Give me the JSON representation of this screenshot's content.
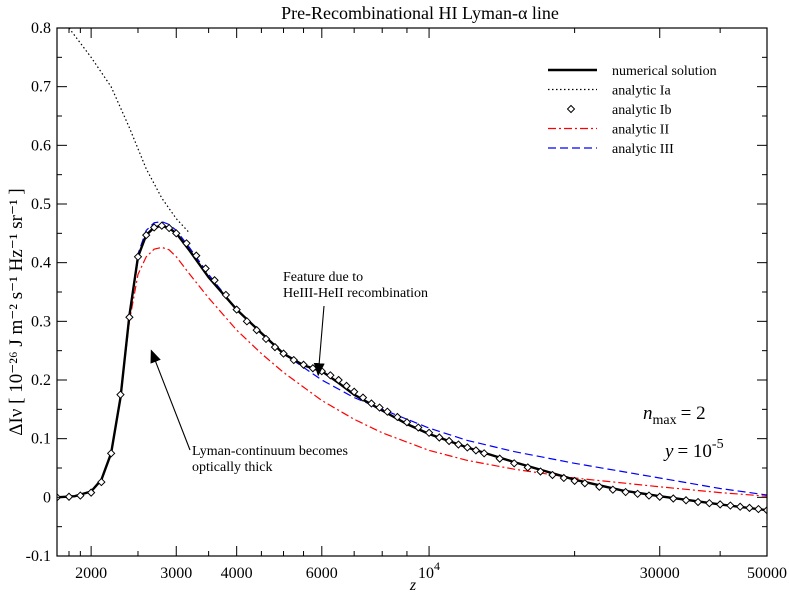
{
  "chart_data": {
    "type": "line",
    "title": "Pre-Recombinational HI Lyman-α line",
    "xlabel": "z",
    "ylabel": "ΔIν [ 10⁻²⁶ J m⁻² s⁻¹ Hz⁻¹ sr⁻¹ ]",
    "xscale": "log",
    "xlim": [
      1700,
      50000
    ],
    "ylim": [
      -0.1,
      0.8
    ],
    "x_ticks": [
      {
        "value": 2000,
        "label": "2000"
      },
      {
        "value": 3000,
        "label": "3000"
      },
      {
        "value": 4000,
        "label": "4000"
      },
      {
        "value": 6000,
        "label": "6000"
      },
      {
        "value": 10000,
        "label": "10",
        "sup": "4"
      },
      {
        "value": 30000,
        "label": "30000"
      },
      {
        "value": 50000,
        "label": "50000"
      }
    ],
    "y_ticks": [
      {
        "value": -0.1,
        "label": "-0.1"
      },
      {
        "value": 0,
        "label": "0"
      },
      {
        "value": 0.1,
        "label": "0.1"
      },
      {
        "value": 0.2,
        "label": "0.2"
      },
      {
        "value": 0.3,
        "label": "0.3"
      },
      {
        "value": 0.4,
        "label": "0.4"
      },
      {
        "value": 0.5,
        "label": "0.5"
      },
      {
        "value": 0.6,
        "label": "0.6"
      },
      {
        "value": 0.7,
        "label": "0.7"
      },
      {
        "value": 0.8,
        "label": "0.8"
      }
    ],
    "legend": {
      "position": "top-right"
    },
    "series": [
      {
        "name": "numerical solution",
        "color": "#000000",
        "style": "solid",
        "x": [
          1700,
          1850,
          2000,
          2100,
          2200,
          2300,
          2400,
          2500,
          2600,
          2700,
          2800,
          2900,
          3000,
          3200,
          3500,
          4000,
          4500,
          5000,
          5500,
          6000,
          6500,
          7000,
          8000,
          9000,
          10000,
          12000,
          15000,
          20000,
          25000,
          30000,
          40000,
          50000
        ],
        "y": [
          0,
          0.002,
          0.01,
          0.03,
          0.075,
          0.17,
          0.31,
          0.41,
          0.447,
          0.46,
          0.463,
          0.459,
          0.45,
          0.42,
          0.375,
          0.32,
          0.28,
          0.245,
          0.225,
          0.215,
          0.195,
          0.175,
          0.148,
          0.125,
          0.108,
          0.085,
          0.06,
          0.03,
          0.012,
          0.002,
          -0.012,
          -0.022
        ]
      },
      {
        "name": "analytic Ia",
        "color": "#000000",
        "style": "dotted",
        "x": [
          1800,
          2000,
          2200,
          2400,
          2600,
          2800,
          3000,
          3200
        ],
        "y": [
          0.8,
          0.75,
          0.7,
          0.63,
          0.56,
          0.51,
          0.475,
          0.45
        ]
      },
      {
        "name": "analytic Ib",
        "color": "#000000",
        "style": "diamond",
        "x": [
          1700,
          1800,
          1900,
          2000,
          2100,
          2200,
          2300,
          2400,
          2500,
          2600,
          2700,
          2800,
          2900,
          3000,
          3150,
          3300,
          3450,
          3600,
          3800,
          4000,
          4200,
          4400,
          4600,
          4800,
          5000,
          5250,
          5500,
          5750,
          6000,
          6250,
          6500,
          6750,
          7000,
          7300,
          7600,
          7900,
          8200,
          8600,
          9000,
          9500,
          10000,
          10500,
          11000,
          11500,
          12000,
          12500,
          13000,
          14000,
          15000,
          16000,
          17000,
          18000,
          19000,
          20000,
          21000,
          22500,
          24000,
          25500,
          27000,
          28500,
          30000,
          32000,
          34000,
          36000,
          38000,
          40000,
          42000,
          44000,
          46000,
          48000,
          50000
        ],
        "y": [
          0,
          0.001,
          0.003,
          0.008,
          0.026,
          0.075,
          0.175,
          0.307,
          0.41,
          0.447,
          0.46,
          0.463,
          0.459,
          0.45,
          0.433,
          0.412,
          0.39,
          0.37,
          0.345,
          0.32,
          0.3,
          0.285,
          0.27,
          0.256,
          0.245,
          0.234,
          0.226,
          0.22,
          0.215,
          0.208,
          0.2,
          0.19,
          0.18,
          0.17,
          0.16,
          0.153,
          0.146,
          0.137,
          0.128,
          0.119,
          0.11,
          0.102,
          0.096,
          0.09,
          0.085,
          0.08,
          0.075,
          0.066,
          0.058,
          0.051,
          0.044,
          0.038,
          0.033,
          0.028,
          0.024,
          0.018,
          0.013,
          0.009,
          0.006,
          0.003,
          0.001,
          -0.002,
          -0.005,
          -0.008,
          -0.01,
          -0.012,
          -0.014,
          -0.016,
          -0.018,
          -0.02,
          -0.022
        ]
      },
      {
        "name": "analytic II",
        "color": "#ff0000",
        "style": "dashdot",
        "x": [
          1700,
          1850,
          2000,
          2100,
          2200,
          2300,
          2400,
          2500,
          2600,
          2700,
          2800,
          2900,
          3000,
          3200,
          3500,
          4000,
          4500,
          5000,
          6000,
          7000,
          8000,
          10000,
          12000,
          15000,
          20000,
          30000,
          40000,
          50000
        ],
        "y": [
          0,
          0.002,
          0.01,
          0.03,
          0.075,
          0.17,
          0.3,
          0.38,
          0.41,
          0.423,
          0.426,
          0.422,
          0.41,
          0.38,
          0.34,
          0.285,
          0.245,
          0.213,
          0.165,
          0.133,
          0.11,
          0.08,
          0.063,
          0.048,
          0.033,
          0.018,
          0.008,
          0.002
        ]
      },
      {
        "name": "analytic III",
        "color": "#0000ff",
        "style": "dashed",
        "x": [
          1700,
          1850,
          2000,
          2100,
          2200,
          2300,
          2400,
          2500,
          2600,
          2700,
          2800,
          2900,
          3000,
          3200,
          3500,
          4000,
          4500,
          5000,
          6000,
          7000,
          8000,
          10000,
          12000,
          15000,
          20000,
          30000,
          40000,
          50000
        ],
        "y": [
          0,
          0.002,
          0.01,
          0.03,
          0.075,
          0.17,
          0.31,
          0.415,
          0.455,
          0.468,
          0.47,
          0.465,
          0.455,
          0.425,
          0.38,
          0.32,
          0.28,
          0.245,
          0.2,
          0.17,
          0.15,
          0.118,
          0.097,
          0.078,
          0.058,
          0.033,
          0.015,
          0.004
        ]
      }
    ],
    "annotations": [
      {
        "text": [
          "Feature due to",
          "HeIII-HeII recombination"
        ],
        "arrow_to": [
          5900,
          0.21
        ]
      },
      {
        "text": [
          "Lyman-continuum becomes",
          "optically thick"
        ],
        "arrow_to": [
          2520,
          0.31
        ]
      }
    ],
    "parameters": {
      "nmax": "n",
      "nmax_sub": "max",
      "nmax_value": "= 2",
      "y": "y",
      "y_value": "= 10",
      "y_exp": "-5"
    }
  }
}
